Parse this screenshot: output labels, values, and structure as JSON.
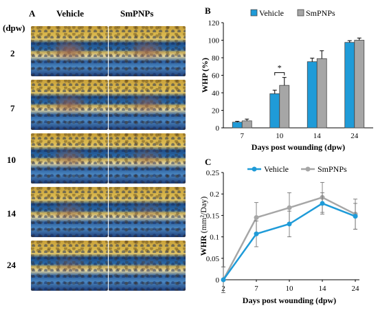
{
  "panel_a": {
    "label": "A",
    "unit_header": "(dpw)",
    "columns": [
      "Vehicle",
      "SmPNPs"
    ],
    "rows": [
      "2",
      "7",
      "10",
      "14",
      "24"
    ]
  },
  "chart_data": [
    {
      "panel": "B",
      "type": "bar",
      "categories": [
        "7",
        "10",
        "14",
        "24"
      ],
      "series": [
        {
          "name": "Vehicle",
          "values": [
            6.5,
            39,
            75.5,
            97.5
          ],
          "errors": [
            1,
            4,
            4,
            2
          ]
        },
        {
          "name": "SmPNPs",
          "values": [
            8,
            48.5,
            79,
            100
          ],
          "errors": [
            2,
            9,
            9,
            2.5
          ]
        }
      ],
      "xlabel": "Days post wounding (dpw)",
      "ylabel": "WHP (%)",
      "ylim": [
        0,
        120
      ],
      "yticks": [
        "0",
        "20",
        "40",
        "60",
        "80",
        "100",
        "120"
      ],
      "significance": {
        "category": "10",
        "symbol": "*"
      },
      "legend": "top",
      "colors": {
        "Vehicle": "#1f9bd8",
        "SmPNPs": "#a6a6a6"
      }
    },
    {
      "panel": "C",
      "type": "line",
      "x": [
        "2",
        "7",
        "10",
        "14",
        "24"
      ],
      "series": [
        {
          "name": "Vehicle",
          "values": [
            0,
            0.107,
            0.13,
            0.178,
            0.148
          ],
          "errors": [
            0.03,
            0.03,
            0.03,
            0.025,
            0.03
          ]
        },
        {
          "name": "SmPNPs",
          "values": [
            0,
            0.145,
            0.168,
            0.192,
            0.153
          ],
          "errors": [
            0.03,
            0.035,
            0.035,
            0.035,
            0.035
          ]
        }
      ],
      "xlabel": "Days post wounding (dpw)",
      "ylabel": "WHR",
      "ylabel_unit": "(mm²/Day)",
      "ylim": [
        0,
        0.25
      ],
      "yticks": [
        "0",
        "0.05",
        "0.1",
        "0.15",
        "0.2",
        "0.25"
      ],
      "legend": "top",
      "colors": {
        "Vehicle": "#1f9bd8",
        "SmPNPs": "#a6a6a6"
      }
    }
  ]
}
